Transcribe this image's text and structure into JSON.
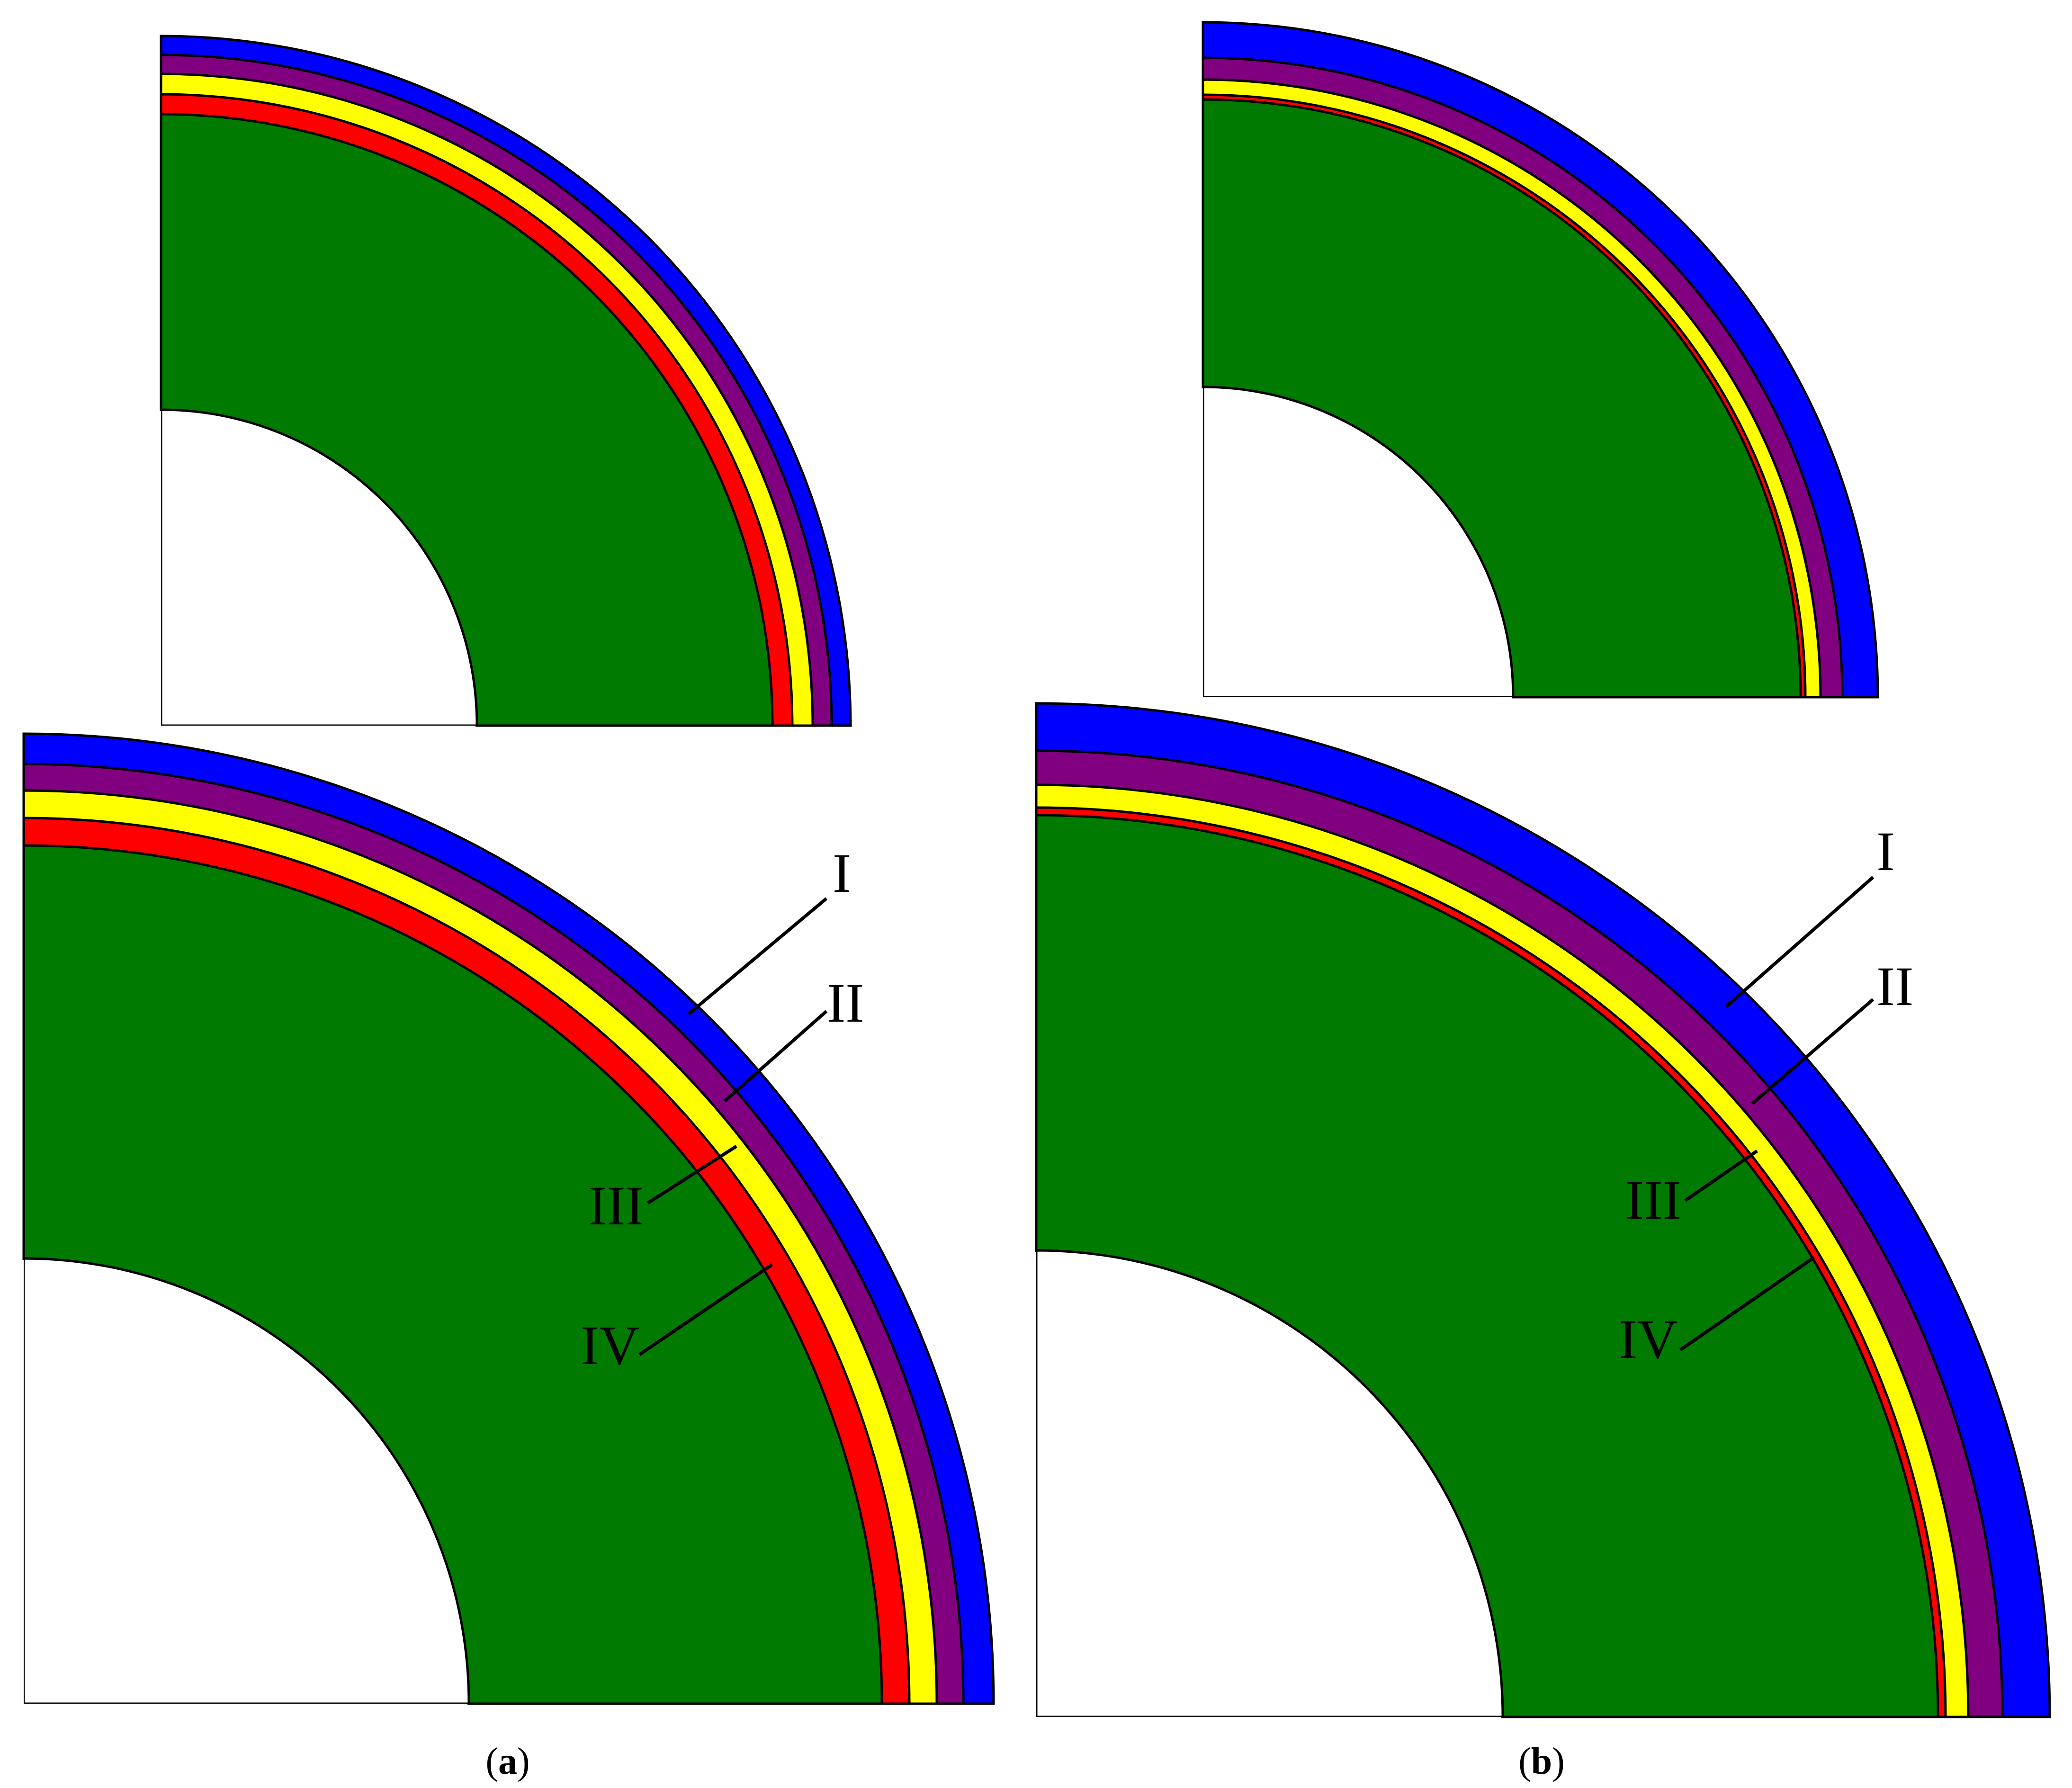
{
  "colors": {
    "core": "#007a00",
    "layer_iv": "#ff0000",
    "layer_iii": "#ffff00",
    "layer_ii": "#800080",
    "layer_i": "#0000ff",
    "outline": "#000000",
    "background": "#ffffff"
  },
  "panels": [
    {
      "letter": "a",
      "caption_open": "(",
      "caption_close": ")",
      "labels": [
        "I",
        "II",
        "III",
        "IV"
      ]
    },
    {
      "letter": "b",
      "caption_open": "(",
      "caption_close": ")",
      "labels": [
        "I",
        "II",
        "III",
        "IV"
      ]
    }
  ]
}
